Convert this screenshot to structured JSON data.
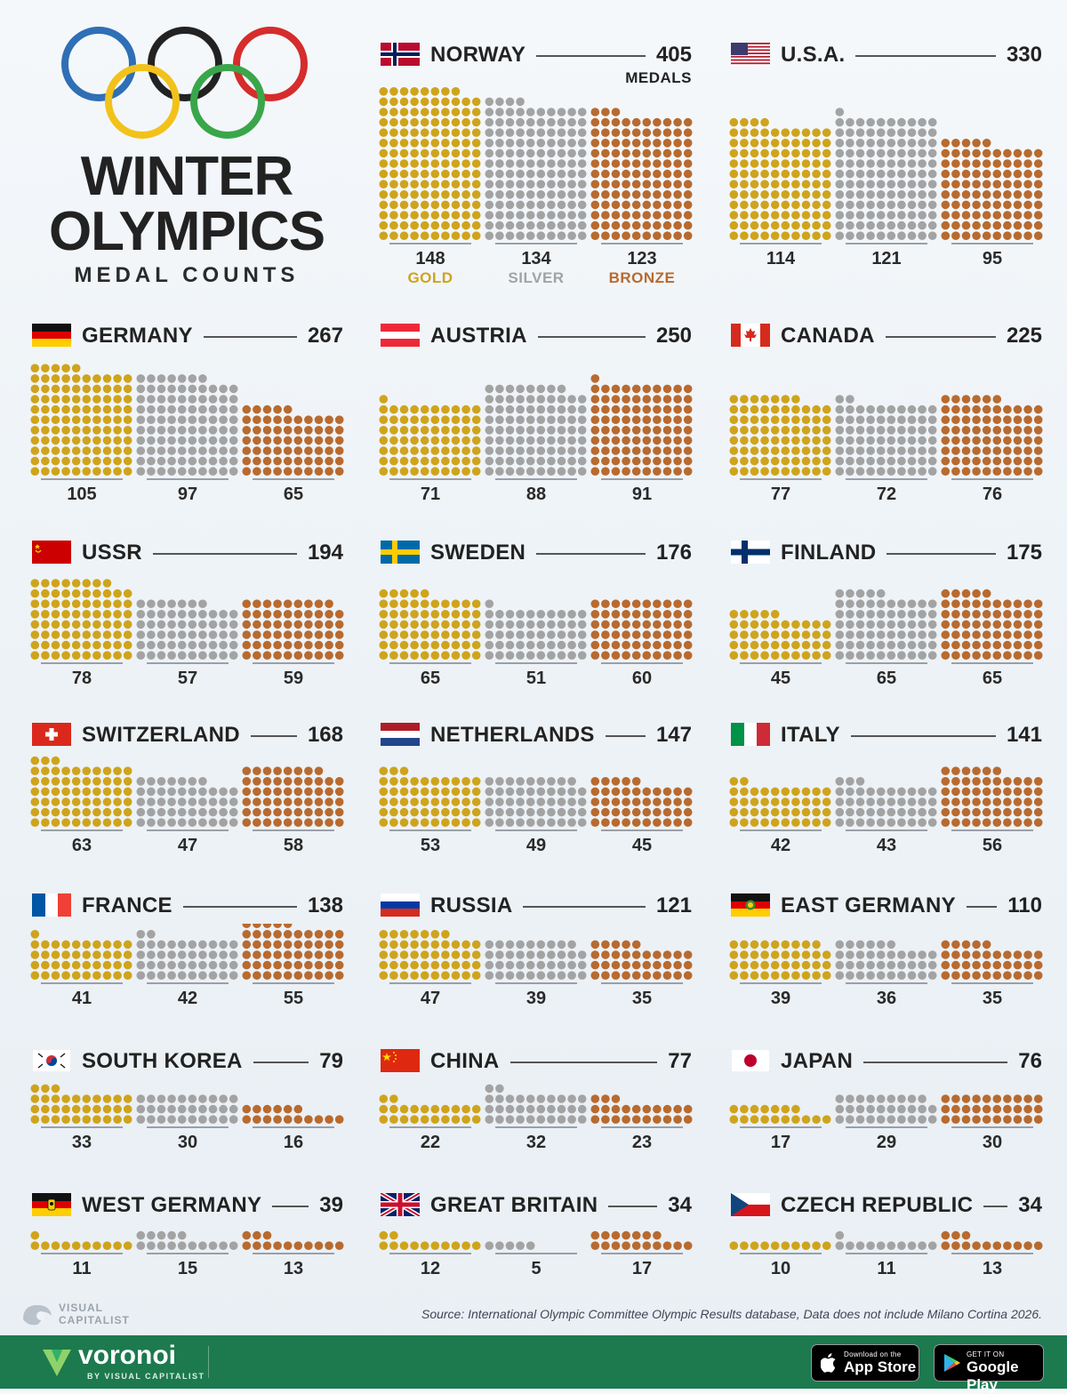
{
  "title_line1": "WINTER",
  "title_line2": "OLYMPICS",
  "subtitle": "MEDAL COUNTS",
  "medals_word": "MEDALS",
  "medal_labels": [
    "GOLD",
    "SILVER",
    "BRONZE"
  ],
  "colors": {
    "gold": "#cfa41c",
    "silver": "#a3a3a3",
    "bronze": "#b86a2f",
    "footer": "#1c7a4e"
  },
  "source": "Source: International Olympic Committee Olympic Results database, Data does not include Milano Cortina 2026.",
  "brand": {
    "logo_text_1": "VISUAL",
    "logo_text_2": "CAPITALIST",
    "voronoi": "voronoi",
    "voronoi_by": "BY VISUAL CAPITALIST"
  },
  "stores": {
    "apple_small": "Download on the",
    "apple_big": "App Store",
    "google_small": "GET IT ON",
    "google_big": "Google Play"
  },
  "chart_data": {
    "type": "bar",
    "title": "WINTER OLYMPICS MEDAL COUNTS",
    "categories": [
      "GOLD",
      "SILVER",
      "BRONZE"
    ],
    "dots_per_row": 10,
    "countries": [
      {
        "name": "NORWAY",
        "flag": "norway-flag",
        "total": 405,
        "gold": 148,
        "silver": 134,
        "bronze": 123
      },
      {
        "name": "U.S.A.",
        "flag": "usa-flag",
        "total": 330,
        "gold": 114,
        "silver": 121,
        "bronze": 95
      },
      {
        "name": "GERMANY",
        "flag": "germany-flag",
        "total": 267,
        "gold": 105,
        "silver": 97,
        "bronze": 65
      },
      {
        "name": "AUSTRIA",
        "flag": "austria-flag",
        "total": 250,
        "gold": 71,
        "silver": 88,
        "bronze": 91
      },
      {
        "name": "CANADA",
        "flag": "canada-flag",
        "total": 225,
        "gold": 77,
        "silver": 72,
        "bronze": 76
      },
      {
        "name": "USSR",
        "flag": "ussr-flag",
        "total": 194,
        "gold": 78,
        "silver": 57,
        "bronze": 59
      },
      {
        "name": "SWEDEN",
        "flag": "sweden-flag",
        "total": 176,
        "gold": 65,
        "silver": 51,
        "bronze": 60
      },
      {
        "name": "FINLAND",
        "flag": "finland-flag",
        "total": 175,
        "gold": 45,
        "silver": 65,
        "bronze": 65
      },
      {
        "name": "SWITZERLAND",
        "flag": "switzerland-flag",
        "total": 168,
        "gold": 63,
        "silver": 47,
        "bronze": 58
      },
      {
        "name": "NETHERLANDS",
        "flag": "netherlands-flag",
        "total": 147,
        "gold": 53,
        "silver": 49,
        "bronze": 45
      },
      {
        "name": "ITALY",
        "flag": "italy-flag",
        "total": 141,
        "gold": 42,
        "silver": 43,
        "bronze": 56
      },
      {
        "name": "FRANCE",
        "flag": "france-flag",
        "total": 138,
        "gold": 41,
        "silver": 42,
        "bronze": 55
      },
      {
        "name": "RUSSIA",
        "flag": "russia-flag",
        "total": 121,
        "gold": 47,
        "silver": 39,
        "bronze": 35
      },
      {
        "name": "EAST GERMANY",
        "flag": "east-germany-flag",
        "total": 110,
        "gold": 39,
        "silver": 36,
        "bronze": 35
      },
      {
        "name": "SOUTH KOREA",
        "flag": "south-korea-flag",
        "total": 79,
        "gold": 33,
        "silver": 30,
        "bronze": 16
      },
      {
        "name": "CHINA",
        "flag": "china-flag",
        "total": 77,
        "gold": 22,
        "silver": 32,
        "bronze": 23
      },
      {
        "name": "JAPAN",
        "flag": "japan-flag",
        "total": 76,
        "gold": 17,
        "silver": 29,
        "bronze": 30
      },
      {
        "name": "WEST GERMANY",
        "flag": "west-germany-flag",
        "total": 39,
        "gold": 11,
        "silver": 15,
        "bronze": 13
      },
      {
        "name": "GREAT BRITAIN",
        "flag": "great-britain-flag",
        "total": 34,
        "gold": 12,
        "silver": 5,
        "bronze": 17
      },
      {
        "name": "CZECH REPUBLIC",
        "flag": "czech-republic-flag",
        "total": 34,
        "gold": 10,
        "silver": 11,
        "bronze": 13
      }
    ]
  }
}
